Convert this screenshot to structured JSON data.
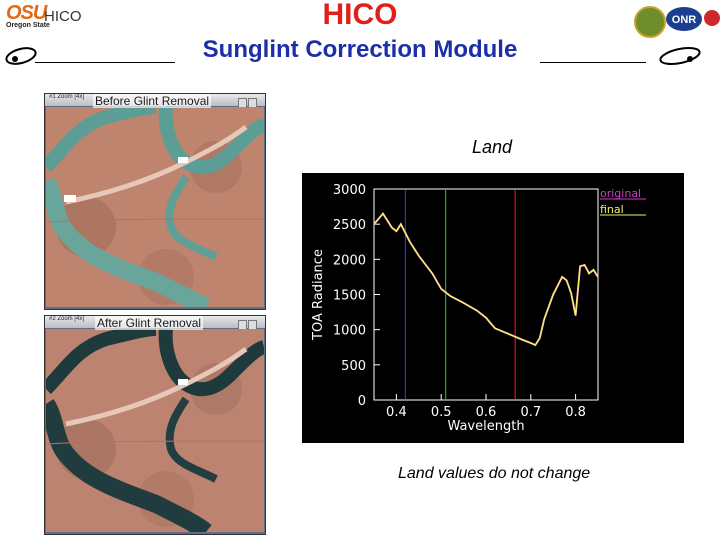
{
  "header": {
    "title": "HICO",
    "subtitle": "Sunglint Correction Module",
    "left_logo_text": "OSU",
    "left_logo_sub": "Oregon State",
    "left_app_name": "HICO",
    "right_logo_text": "ONR"
  },
  "windows": [
    {
      "title_bar": "#1 Zoom [4x]",
      "label": "Before Glint Removal"
    },
    {
      "title_bar": "#2 Zoom [4x]",
      "label": "After Glint Removal"
    }
  ],
  "main": {
    "heading": "Land",
    "caption": "Land values do not change"
  },
  "chart_data": {
    "type": "line",
    "xlabel": "Wavelength",
    "ylabel": "TOA Radiance",
    "xlim": [
      0.35,
      0.85
    ],
    "ylim": [
      0,
      3000
    ],
    "xticks": [
      "0.4",
      "0.5",
      "0.6",
      "0.7",
      "0.8"
    ],
    "yticks": [
      "0",
      "500",
      "1000",
      "1500",
      "2000",
      "2500",
      "3000"
    ],
    "legend_position": "top-right",
    "series": [
      {
        "name": "original",
        "color": "#d23cc8",
        "x": [
          0.35,
          0.37,
          0.39,
          0.4,
          0.41,
          0.43,
          0.45,
          0.48,
          0.5,
          0.52,
          0.55,
          0.58,
          0.6,
          0.62,
          0.65,
          0.68,
          0.7,
          0.71,
          0.72,
          0.73,
          0.75,
          0.77,
          0.78,
          0.79,
          0.8,
          0.81,
          0.82,
          0.83,
          0.84,
          0.85
        ],
        "y": [
          2500,
          2650,
          2450,
          2400,
          2500,
          2250,
          2050,
          1800,
          1580,
          1480,
          1380,
          1270,
          1170,
          1020,
          940,
          860,
          810,
          780,
          880,
          1150,
          1500,
          1750,
          1700,
          1520,
          1200,
          1900,
          1920,
          1800,
          1850,
          1750
        ]
      },
      {
        "name": "final",
        "color": "#f0f06a",
        "x": [
          0.35,
          0.37,
          0.39,
          0.4,
          0.41,
          0.43,
          0.45,
          0.48,
          0.5,
          0.52,
          0.55,
          0.58,
          0.6,
          0.62,
          0.65,
          0.68,
          0.7,
          0.71,
          0.72,
          0.73,
          0.75,
          0.77,
          0.78,
          0.79,
          0.8,
          0.81,
          0.82,
          0.83,
          0.84,
          0.85
        ],
        "y": [
          2500,
          2650,
          2450,
          2400,
          2500,
          2250,
          2050,
          1800,
          1580,
          1480,
          1380,
          1270,
          1170,
          1020,
          940,
          860,
          810,
          780,
          880,
          1150,
          1500,
          1750,
          1700,
          1520,
          1200,
          1900,
          1920,
          1800,
          1850,
          1750
        ]
      }
    ],
    "markers": [
      {
        "x": 0.42,
        "color": "#2244ff"
      },
      {
        "x": 0.51,
        "color": "#22cc33"
      },
      {
        "x": 0.665,
        "color": "#ee2222"
      }
    ]
  }
}
